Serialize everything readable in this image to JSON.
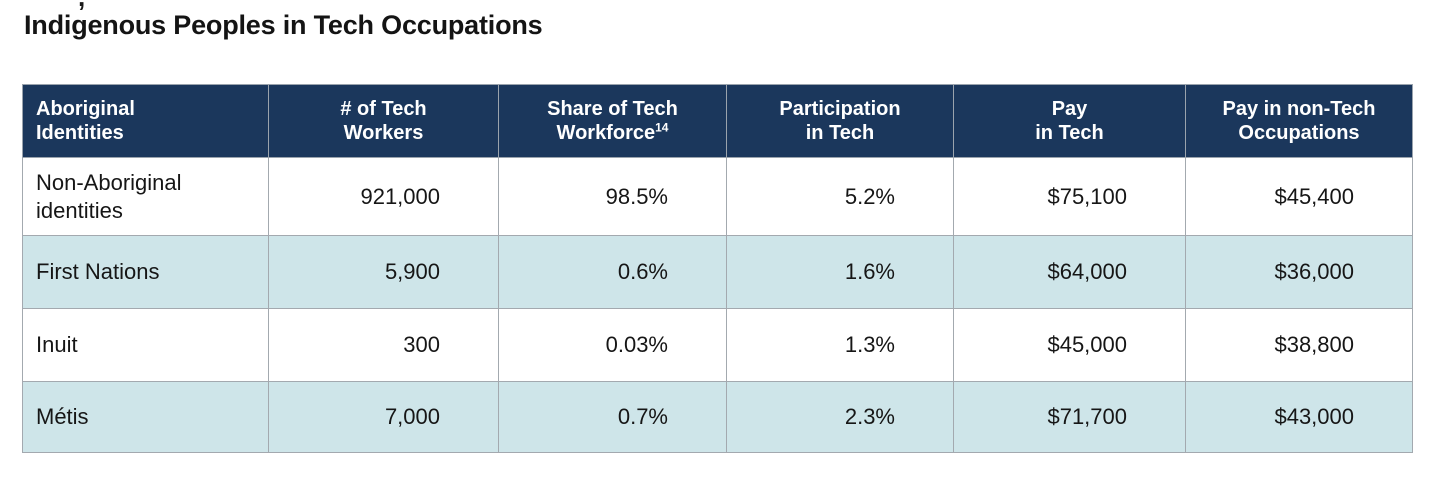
{
  "page": {
    "title": "Indigenous Peoples in Tech Occupations",
    "cropped_fragment": ","
  },
  "colors": {
    "header_bg": "#1b375c",
    "header_text": "#ffffff",
    "row_white_bg": "#ffffff",
    "row_alt_bg": "#cee5e9",
    "border": "#a3a9af",
    "title_text": "#141414"
  },
  "table": {
    "columns": [
      {
        "line1": "Aboriginal",
        "line2": "Identities"
      },
      {
        "line1": "# of Tech",
        "line2": "Workers"
      },
      {
        "line1": "Share of Tech",
        "line2": "Workforce",
        "superscript": "14"
      },
      {
        "line1": "Participation",
        "line2": "in Tech"
      },
      {
        "line1": "Pay",
        "line2": "in Tech"
      },
      {
        "line1": "Pay in non-Tech",
        "line2": "Occupations"
      }
    ],
    "rows": [
      {
        "identity": "Non-Aboriginal identities",
        "workers": "921,000",
        "share": "98.5%",
        "participation": "5.2%",
        "pay_tech": "$75,100",
        "pay_non_tech": "$45,400"
      },
      {
        "identity": "First Nations",
        "workers": "5,900",
        "share": "0.6%",
        "participation": "1.6%",
        "pay_tech": "$64,000",
        "pay_non_tech": "$36,000"
      },
      {
        "identity": "Inuit",
        "workers": "300",
        "share": "0.03%",
        "participation": "1.3%",
        "pay_tech": "$45,000",
        "pay_non_tech": "$38,800"
      },
      {
        "identity": "Métis",
        "workers": "7,000",
        "share": "0.7%",
        "participation": "2.3%",
        "pay_tech": "$71,700",
        "pay_non_tech": "$43,000"
      }
    ]
  },
  "chart_data": {
    "type": "table",
    "title": "Indigenous Peoples in Tech Occupations",
    "columns": [
      "Aboriginal Identities",
      "# of Tech Workers",
      "Share of Tech Workforce¹⁴",
      "Participation in Tech",
      "Pay in Tech",
      "Pay in non-Tech Occupations"
    ],
    "rows": [
      [
        "Non-Aboriginal identities",
        "921,000",
        "98.5%",
        "5.2%",
        "$75,100",
        "$45,400"
      ],
      [
        "First Nations",
        "5,900",
        "0.6%",
        "1.6%",
        "$64,000",
        "$36,000"
      ],
      [
        "Inuit",
        "300",
        "0.03%",
        "1.3%",
        "$45,000",
        "$38,800"
      ],
      [
        "Métis",
        "7,000",
        "0.7%",
        "2.3%",
        "$71,700",
        "$43,000"
      ]
    ]
  }
}
